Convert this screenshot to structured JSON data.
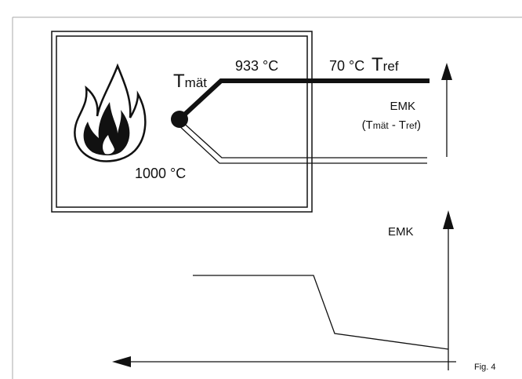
{
  "labels": {
    "t_mat": {
      "main": "T",
      "sub": "mät"
    },
    "temp_933": "933 °C",
    "temp_70": "70 °C",
    "t_ref": {
      "main": "T",
      "sub": "ref"
    },
    "emk_top": "EMK",
    "emk_formula": [
      "(T",
      "mät",
      " - T",
      "ref",
      ")"
    ],
    "temp_1000": "1000 °C",
    "emk_axis": "EMK"
  },
  "caption": "Fig. 4"
}
